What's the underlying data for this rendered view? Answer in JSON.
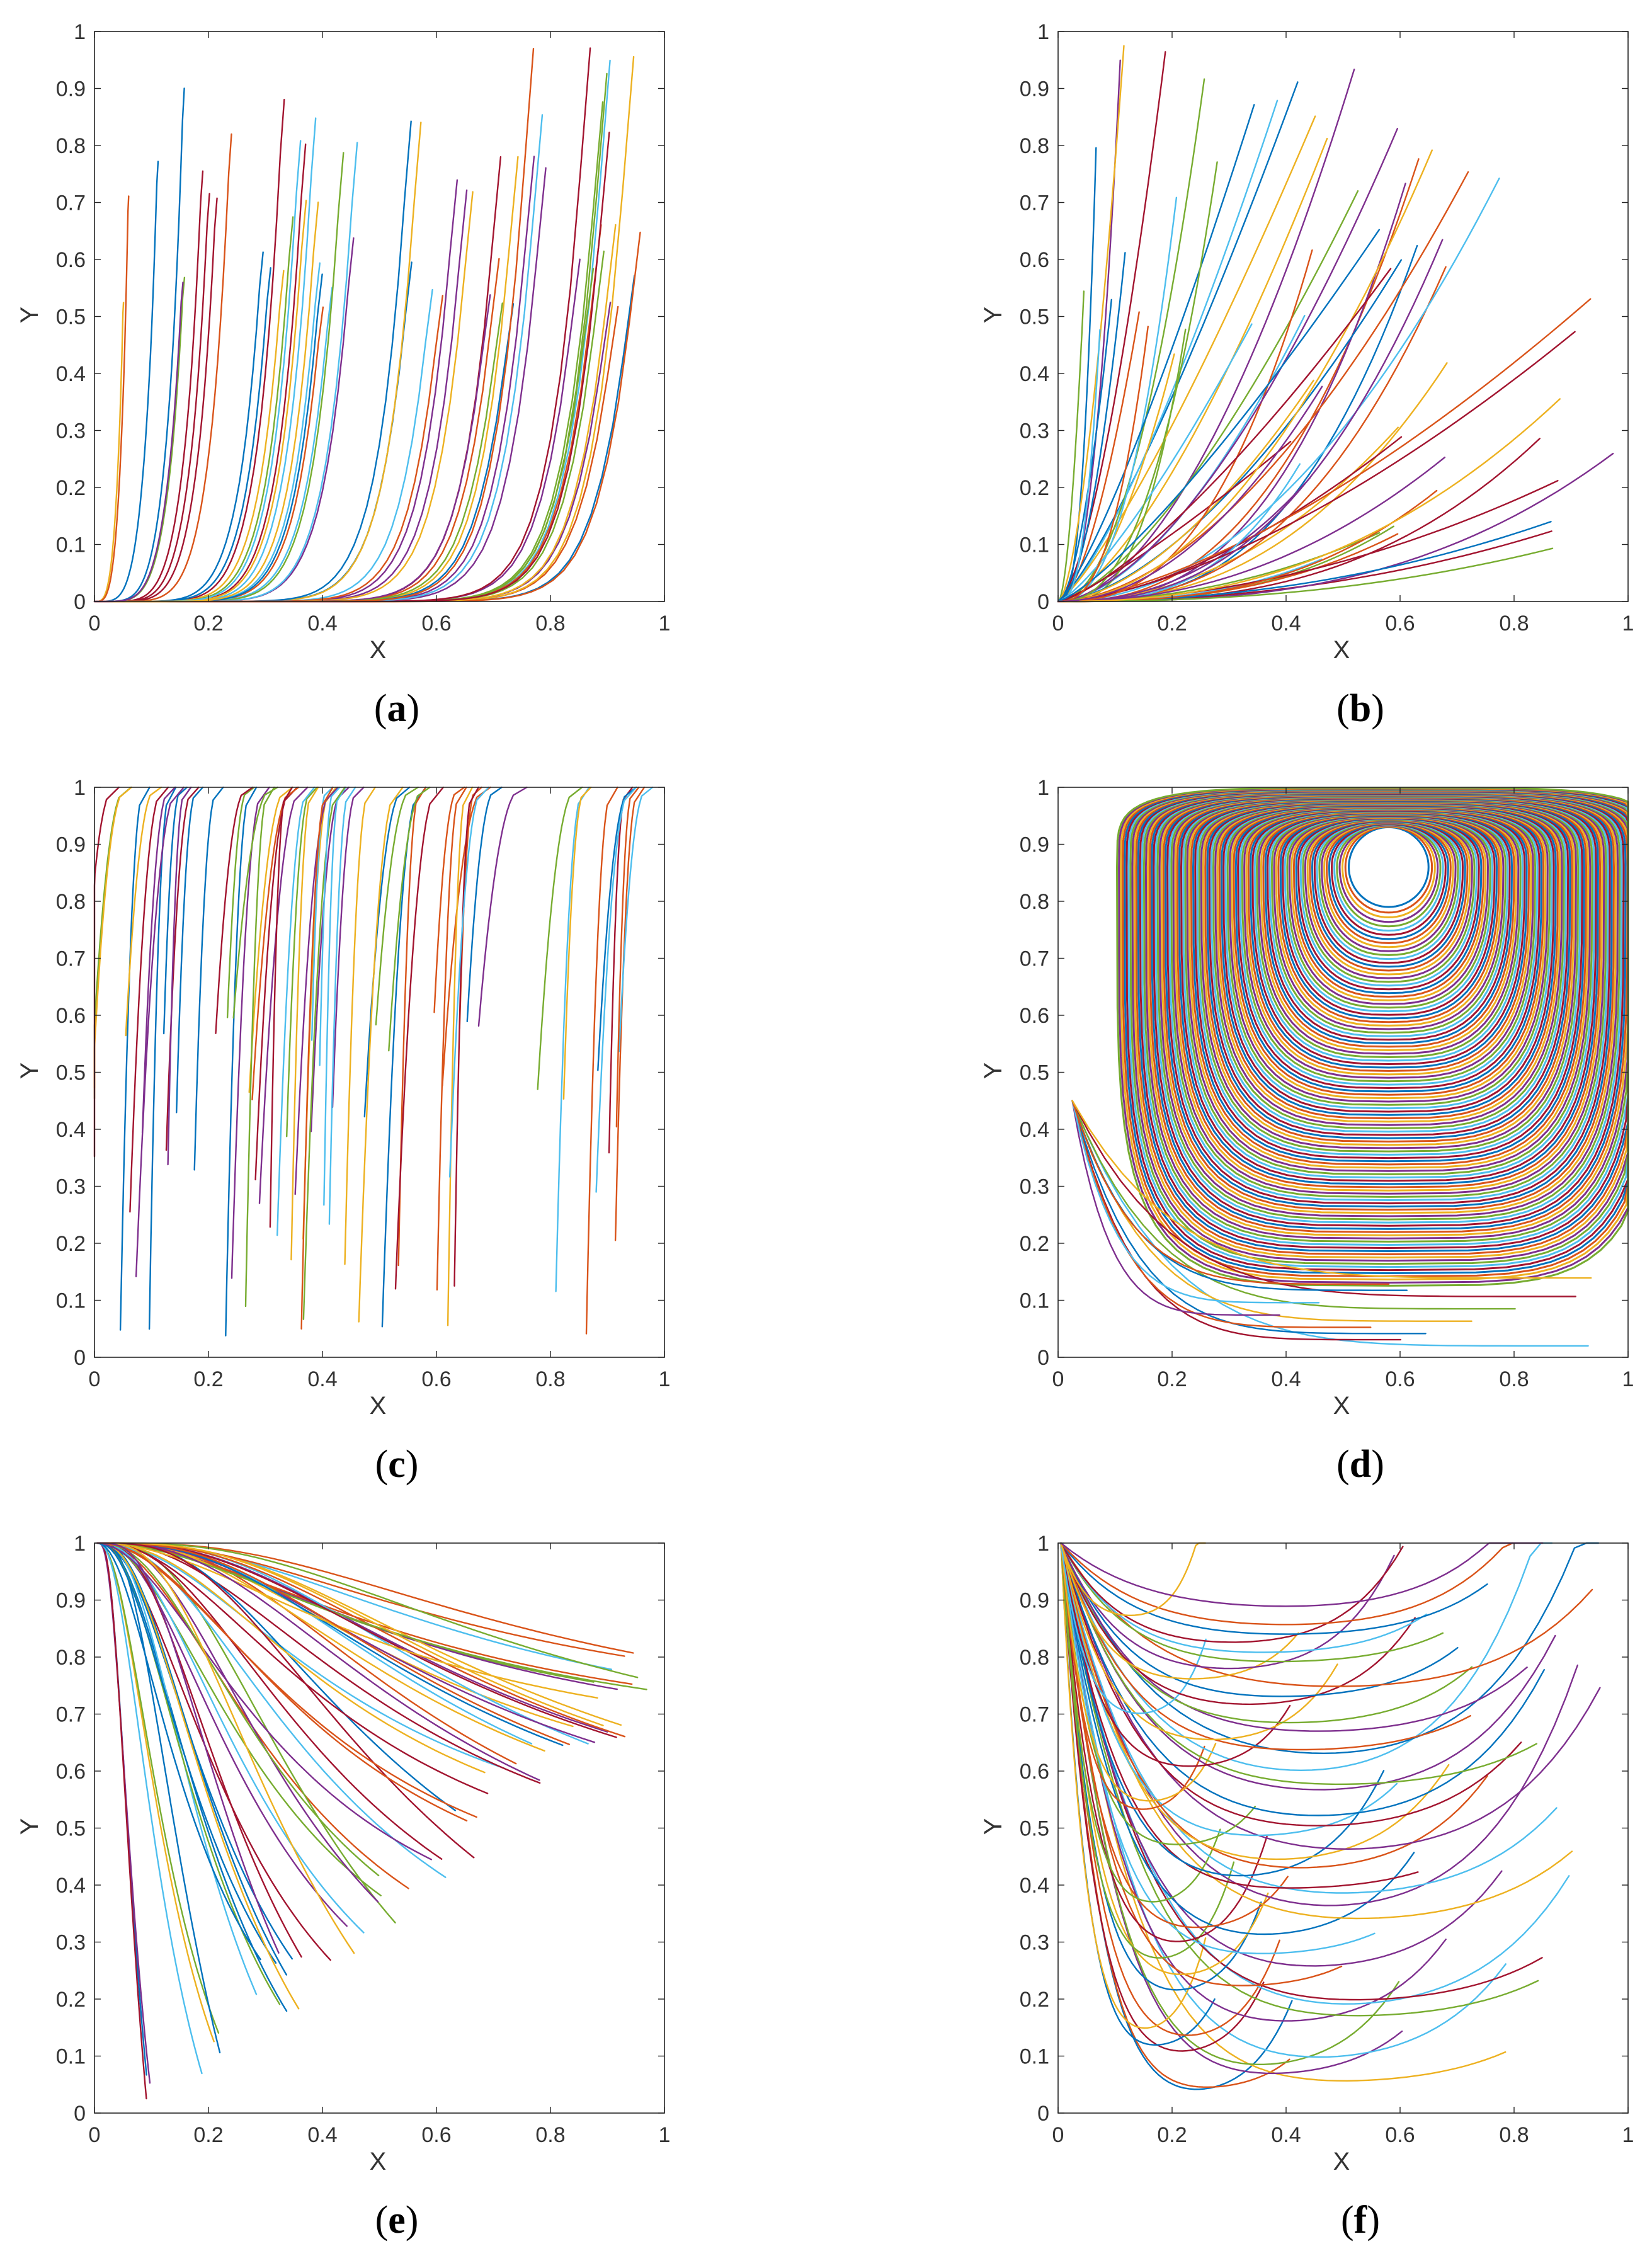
{
  "figure": {
    "panels": [
      {
        "id": "a",
        "caption_open": "(",
        "caption_letter": "a",
        "caption_close": ")"
      },
      {
        "id": "b",
        "caption_open": "(",
        "caption_letter": "b",
        "caption_close": ")"
      },
      {
        "id": "c",
        "caption_open": "(",
        "caption_letter": "c",
        "caption_close": ")"
      },
      {
        "id": "d",
        "caption_open": "(",
        "caption_letter": "d",
        "caption_close": ")"
      },
      {
        "id": "e",
        "caption_open": "(",
        "caption_letter": "e",
        "caption_close": ")"
      },
      {
        "id": "f",
        "caption_open": "(",
        "caption_letter": "f",
        "caption_close": ")"
      }
    ]
  },
  "chart_data": [
    {
      "panel": "a",
      "type": "line",
      "pattern": "corner-outflow-bottom-left",
      "title": "",
      "xlabel": "X",
      "ylabel": "Y",
      "xlim": [
        0,
        1
      ],
      "ylim": [
        0,
        1
      ],
      "xticks": [
        "0",
        "0.2",
        "0.4",
        "0.6",
        "0.8",
        "1"
      ],
      "yticks": [
        "0",
        "0.1",
        "0.2",
        "0.3",
        "0.4",
        "0.5",
        "0.6",
        "0.7",
        "0.8",
        "0.9",
        "1"
      ],
      "grid": false,
      "series_count": 60
    },
    {
      "panel": "b",
      "type": "line",
      "pattern": "radial-from-origin",
      "title": "",
      "xlabel": "X",
      "ylabel": "Y",
      "xlim": [
        0,
        1
      ],
      "ylim": [
        0,
        1
      ],
      "xticks": [
        "0",
        "0.2",
        "0.4",
        "0.6",
        "0.8",
        "1"
      ],
      "yticks": [
        "0",
        "0.1",
        "0.2",
        "0.3",
        "0.4",
        "0.5",
        "0.6",
        "0.7",
        "0.8",
        "0.9",
        "1"
      ],
      "grid": false,
      "series_count": 60
    },
    {
      "panel": "c",
      "type": "line",
      "pattern": "vertical-from-top-lid",
      "title": "",
      "xlabel": "X",
      "ylabel": "Y",
      "xlim": [
        0,
        1
      ],
      "ylim": [
        0,
        1
      ],
      "xticks": [
        "0",
        "0.2",
        "0.4",
        "0.6",
        "0.8",
        "1"
      ],
      "yticks": [
        "0",
        "0.1",
        "0.2",
        "0.3",
        "0.4",
        "0.5",
        "0.6",
        "0.7",
        "0.8",
        "0.9",
        "1"
      ],
      "grid": false,
      "series_count": 65
    },
    {
      "panel": "d",
      "type": "line",
      "pattern": "closed-recirculation-vortex",
      "vortex_center": [
        0.58,
        0.86
      ],
      "title": "",
      "xlabel": "X",
      "ylabel": "Y",
      "xlim": [
        0,
        1
      ],
      "ylim": [
        0,
        1
      ],
      "xticks": [
        "0",
        "0.2",
        "0.4",
        "0.6",
        "0.8",
        "1"
      ],
      "yticks": [
        "0",
        "0.1",
        "0.2",
        "0.3",
        "0.4",
        "0.5",
        "0.6",
        "0.7",
        "0.8",
        "0.9",
        "1"
      ],
      "grid": false,
      "series_count": 110
    },
    {
      "panel": "e",
      "type": "line",
      "pattern": "corner-inflow-top-left",
      "title": "",
      "xlabel": "X",
      "ylabel": "Y",
      "xlim": [
        0,
        1
      ],
      "ylim": [
        0,
        1
      ],
      "xticks": [
        "0",
        "0.2",
        "0.4",
        "0.6",
        "0.8",
        "1"
      ],
      "yticks": [
        "0",
        "0.1",
        "0.2",
        "0.3",
        "0.4",
        "0.5",
        "0.6",
        "0.7",
        "0.8",
        "0.9",
        "1"
      ],
      "grid": false,
      "series_count": 60
    },
    {
      "panel": "f",
      "type": "line",
      "pattern": "u-shaped-from-top-left",
      "title": "",
      "xlabel": "X",
      "ylabel": "Y",
      "xlim": [
        0,
        1
      ],
      "ylim": [
        0,
        1
      ],
      "xticks": [
        "0",
        "0.2",
        "0.4",
        "0.6",
        "0.8",
        "1"
      ],
      "yticks": [
        "0",
        "0.1",
        "0.2",
        "0.3",
        "0.4",
        "0.5",
        "0.6",
        "0.7",
        "0.8",
        "0.9",
        "1"
      ],
      "grid": false,
      "series_count": 60
    }
  ],
  "colors": [
    "#0072BD",
    "#D95319",
    "#EDB120",
    "#7E2F8E",
    "#77AC30",
    "#4DBEEE",
    "#A2142F"
  ]
}
